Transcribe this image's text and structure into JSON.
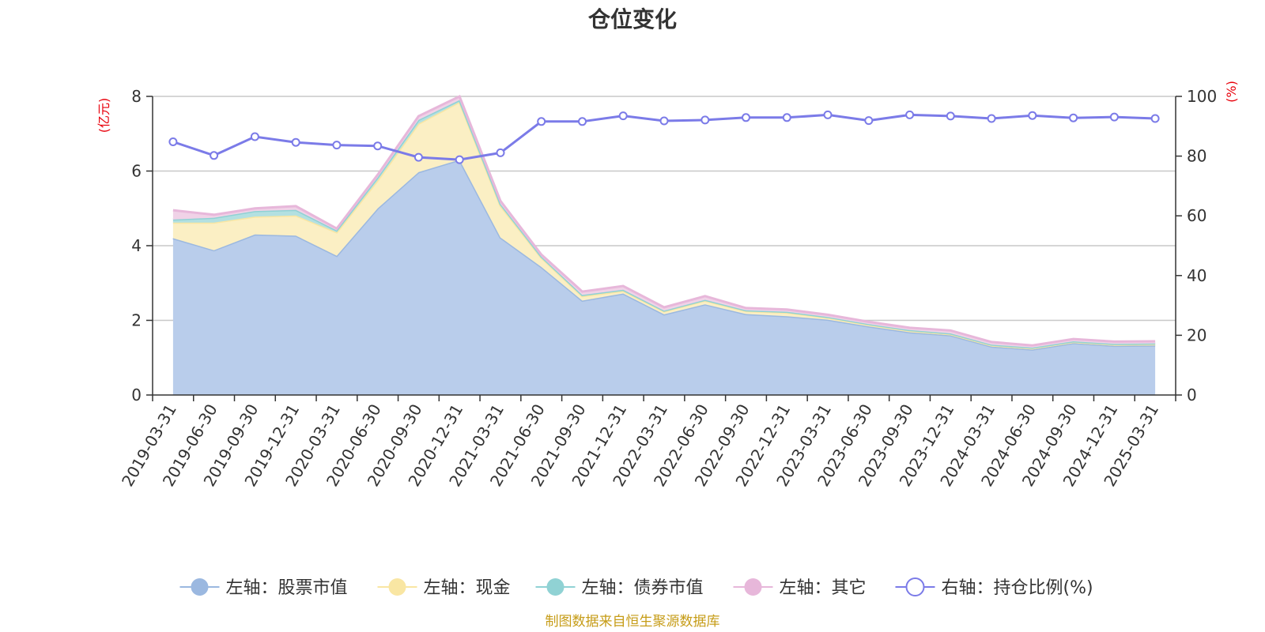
{
  "chart_data": {
    "type": "area",
    "title": "仓位变化",
    "source_note": "制图数据来自恒生聚源数据库",
    "left_axis": {
      "unit_label": "(亿元)",
      "min": 0,
      "max": 8,
      "ticks": [
        "0",
        "2",
        "4",
        "6",
        "8"
      ]
    },
    "right_axis": {
      "unit_label": "(%)",
      "min": 0,
      "max": 100,
      "ticks": [
        "0",
        "20",
        "40",
        "60",
        "80",
        "100"
      ]
    },
    "categories": [
      "2019-03-31",
      "2019-06-30",
      "2019-09-30",
      "2019-12-31",
      "2020-03-31",
      "2020-06-30",
      "2020-09-30",
      "2020-12-31",
      "2021-03-31",
      "2021-06-30",
      "2021-09-30",
      "2021-12-31",
      "2022-03-31",
      "2022-06-30",
      "2022-09-30",
      "2022-12-31",
      "2023-03-31",
      "2023-06-30",
      "2023-09-30",
      "2023-12-31",
      "2024-03-31",
      "2024-06-30",
      "2024-09-30",
      "2024-12-31",
      "2025-03-31"
    ],
    "series": [
      {
        "name": "左轴：股票市值",
        "axis": "left",
        "kind": "stacked-area",
        "color": "#9bb8e0",
        "fill": "#b9cdeb",
        "values": [
          4.2,
          3.88,
          4.3,
          4.27,
          3.73,
          5.0,
          5.97,
          6.3,
          4.22,
          3.43,
          2.53,
          2.72,
          2.16,
          2.43,
          2.17,
          2.11,
          2.02,
          1.84,
          1.68,
          1.6,
          1.3,
          1.22,
          1.39,
          1.32,
          1.33
        ]
      },
      {
        "name": "左轴：现金",
        "axis": "left",
        "kind": "stacked-area",
        "color": "#f9e6a3",
        "fill": "#fbefc4",
        "values": [
          0.42,
          0.74,
          0.48,
          0.54,
          0.63,
          0.75,
          1.3,
          1.55,
          0.85,
          0.25,
          0.12,
          0.07,
          0.08,
          0.1,
          0.08,
          0.1,
          0.05,
          0.04,
          0.04,
          0.03,
          0.03,
          0.03,
          0.03,
          0.03,
          0.03
        ]
      },
      {
        "name": "左轴：债券市值",
        "axis": "left",
        "kind": "stacked-area",
        "color": "#90d2d4",
        "fill": "#b3e0e1",
        "values": [
          0.08,
          0.13,
          0.15,
          0.15,
          0.05,
          0.08,
          0.1,
          0.05,
          0.05,
          0.03,
          0.03,
          0.03,
          0.02,
          0.02,
          0.02,
          0.02,
          0.02,
          0.02,
          0.02,
          0.02,
          0.02,
          0.02,
          0.02,
          0.02,
          0.02
        ]
      },
      {
        "name": "左轴：其它",
        "axis": "left",
        "kind": "stacked-area",
        "color": "#e7b7da",
        "fill": "#f0d2e7",
        "values": [
          0.25,
          0.08,
          0.07,
          0.1,
          0.05,
          0.07,
          0.1,
          0.1,
          0.08,
          0.05,
          0.09,
          0.1,
          0.09,
          0.1,
          0.06,
          0.06,
          0.06,
          0.06,
          0.06,
          0.08,
          0.07,
          0.06,
          0.06,
          0.06,
          0.06
        ]
      },
      {
        "name": "右轴：持仓比例(%)",
        "axis": "right",
        "kind": "line",
        "color": "#7b7be8",
        "fill": "#ffffff",
        "values": [
          84.8,
          80.2,
          86.5,
          84.6,
          83.7,
          83.4,
          79.6,
          78.8,
          81.1,
          91.6,
          91.6,
          93.5,
          91.8,
          92.1,
          92.9,
          92.9,
          93.8,
          91.9,
          93.8,
          93.4,
          92.6,
          93.6,
          92.8,
          93.1,
          92.6
        ]
      }
    ]
  }
}
